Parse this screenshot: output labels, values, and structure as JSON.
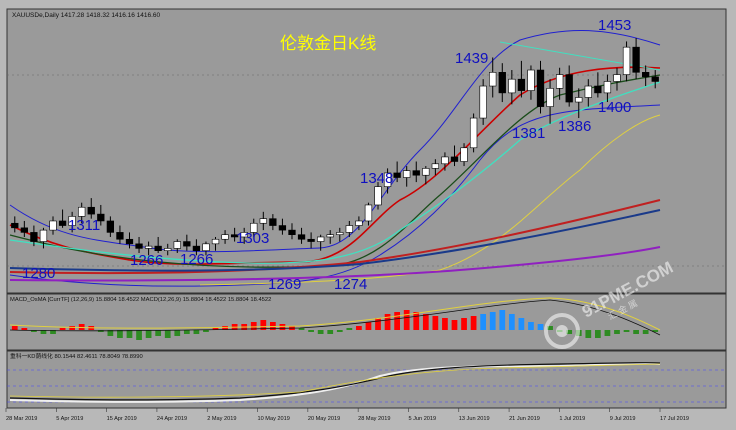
{
  "header": {
    "symbol_line": "XAUUSDe,Daily  1417.28 1418.32 1416.16 1416.60",
    "title": "伦敦金日K线"
  },
  "chart_data": {
    "type": "candlestick",
    "title": "伦敦金日K线",
    "ylim": [
      1240,
      1470
    ],
    "candles": [
      [
        1294,
        1300,
        1286,
        1290
      ],
      [
        1290,
        1296,
        1282,
        1286
      ],
      [
        1286,
        1292,
        1274,
        1278
      ],
      [
        1278,
        1290,
        1272,
        1288
      ],
      [
        1288,
        1300,
        1284,
        1296
      ],
      [
        1296,
        1306,
        1290,
        1292
      ],
      [
        1292,
        1304,
        1286,
        1300
      ],
      [
        1300,
        1312,
        1294,
        1308
      ],
      [
        1308,
        1316,
        1298,
        1302
      ],
      [
        1302,
        1310,
        1292,
        1296
      ],
      [
        1296,
        1300,
        1282,
        1286
      ],
      [
        1286,
        1292,
        1276,
        1280
      ],
      [
        1280,
        1286,
        1272,
        1276
      ],
      [
        1276,
        1282,
        1268,
        1272
      ],
      [
        1272,
        1278,
        1266,
        1274
      ],
      [
        1274,
        1282,
        1268,
        1270
      ],
      [
        1270,
        1276,
        1266,
        1272
      ],
      [
        1272,
        1280,
        1268,
        1278
      ],
      [
        1278,
        1284,
        1270,
        1274
      ],
      [
        1274,
        1280,
        1266,
        1270
      ],
      [
        1270,
        1278,
        1266,
        1276
      ],
      [
        1276,
        1282,
        1270,
        1280
      ],
      [
        1280,
        1288,
        1276,
        1284
      ],
      [
        1284,
        1290,
        1278,
        1282
      ],
      [
        1282,
        1290,
        1276,
        1286
      ],
      [
        1286,
        1298,
        1282,
        1294
      ],
      [
        1294,
        1304,
        1288,
        1298
      ],
      [
        1298,
        1302,
        1288,
        1292
      ],
      [
        1292,
        1298,
        1284,
        1288
      ],
      [
        1288,
        1294,
        1280,
        1284
      ],
      [
        1284,
        1290,
        1276,
        1280
      ],
      [
        1280,
        1286,
        1272,
        1278
      ],
      [
        1278,
        1284,
        1270,
        1282
      ],
      [
        1282,
        1288,
        1276,
        1284
      ],
      [
        1284,
        1290,
        1278,
        1286
      ],
      [
        1286,
        1296,
        1282,
        1292
      ],
      [
        1292,
        1300,
        1288,
        1296
      ],
      [
        1296,
        1312,
        1292,
        1310
      ],
      [
        1310,
        1330,
        1306,
        1326
      ],
      [
        1326,
        1342,
        1320,
        1338
      ],
      [
        1338,
        1348,
        1330,
        1334
      ],
      [
        1334,
        1344,
        1326,
        1340
      ],
      [
        1340,
        1348,
        1330,
        1336
      ],
      [
        1336,
        1344,
        1328,
        1342
      ],
      [
        1342,
        1350,
        1336,
        1346
      ],
      [
        1346,
        1356,
        1340,
        1352
      ],
      [
        1352,
        1362,
        1344,
        1348
      ],
      [
        1348,
        1364,
        1344,
        1360
      ],
      [
        1360,
        1390,
        1356,
        1386
      ],
      [
        1386,
        1420,
        1380,
        1414
      ],
      [
        1414,
        1439,
        1404,
        1426
      ],
      [
        1426,
        1434,
        1400,
        1408
      ],
      [
        1408,
        1428,
        1398,
        1420
      ],
      [
        1420,
        1436,
        1404,
        1410
      ],
      [
        1410,
        1432,
        1402,
        1428
      ],
      [
        1428,
        1436,
        1390,
        1396
      ],
      [
        1396,
        1420,
        1381,
        1412
      ],
      [
        1412,
        1430,
        1402,
        1424
      ],
      [
        1424,
        1432,
        1396,
        1400
      ],
      [
        1400,
        1412,
        1386,
        1404
      ],
      [
        1404,
        1420,
        1396,
        1414
      ],
      [
        1414,
        1426,
        1404,
        1408
      ],
      [
        1408,
        1424,
        1400,
        1418
      ],
      [
        1418,
        1430,
        1410,
        1424
      ],
      [
        1424,
        1453,
        1418,
        1448
      ],
      [
        1448,
        1456,
        1420,
        1426
      ],
      [
        1426,
        1432,
        1414,
        1422
      ],
      [
        1422,
        1428,
        1412,
        1418
      ]
    ],
    "annotations": [
      "1311",
      "1280",
      "1266",
      "1266",
      "1303",
      "1269",
      "1274",
      "1348",
      "1439",
      "1381",
      "1386",
      "1400",
      "1453"
    ],
    "x_ticks": [
      "28 Mar 2019",
      "5 Apr 2019",
      "15 Apr 2019",
      "24 Apr 2019",
      "2 May 2019",
      "10 May 2019",
      "20 May 2019",
      "28 May 2019",
      "5 Jun 2019",
      "13 Jun 2019",
      "21 Jun 2019",
      "1 Jul 2019",
      "9 Jul 2019",
      "17 Jul 2019"
    ]
  },
  "macd_panel": {
    "label": "MACD_OsMA [CurrTF] (12,26,9) 15.8804 18.4522  MACD(12,26,9) 15.8804 18.4522 15.8804 18.4522",
    "hist": [
      2,
      1,
      -1,
      -2,
      -2,
      1,
      2,
      3,
      2,
      -1,
      -3,
      -4,
      -4,
      -5,
      -4,
      -3,
      -4,
      -3,
      -2,
      -2,
      -1,
      1,
      2,
      3,
      3,
      4,
      5,
      4,
      3,
      2,
      1,
      -1,
      -2,
      -2,
      -1,
      1,
      2,
      4,
      6,
      8,
      9,
      10,
      9,
      8,
      7,
      6,
      5,
      6,
      7,
      8,
      9,
      10,
      8,
      6,
      4,
      3,
      2,
      -1,
      -2,
      -3,
      -4,
      -4,
      -3,
      -2,
      -1,
      -2,
      -2,
      -1
    ],
    "colors": {
      "up": "#ff0000",
      "down": "#1e90ff",
      "green": "#2e8b22",
      "black": "#000000"
    }
  },
  "kd_panel": {
    "label": "重科一KD荫线化 80.1544 82.4611 78.8049 78.8990"
  },
  "watermark": {
    "logo_text": "91PME.COM",
    "sub_text": "汇 金 属"
  }
}
